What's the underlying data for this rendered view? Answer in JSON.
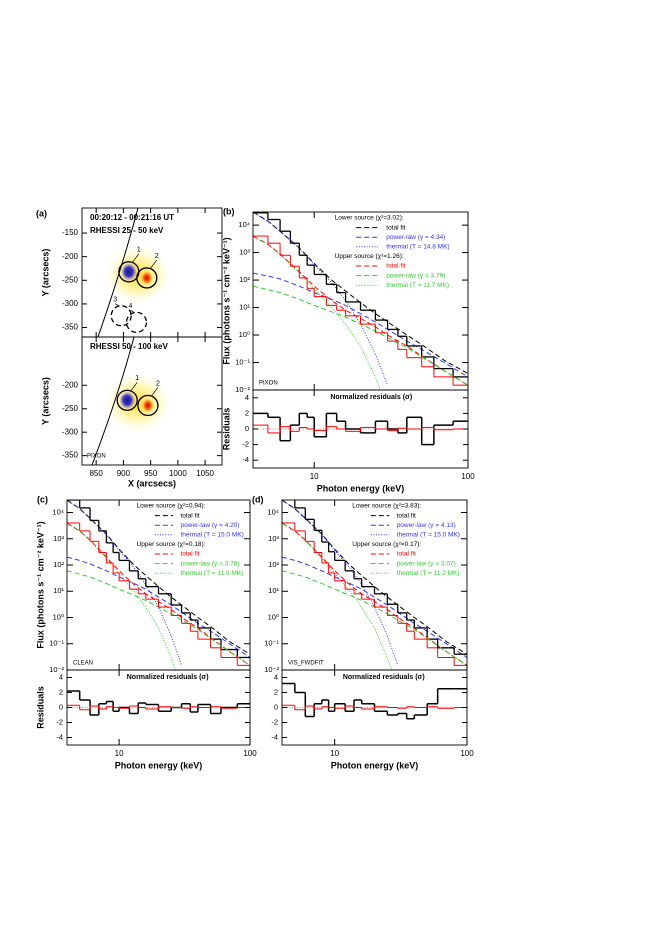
{
  "chart_data": [
    {
      "type": "image",
      "label": "(a)",
      "xlabel": "X (arcsecs)",
      "ylabel": "Y (arcsecs)",
      "xlim": [
        824,
        1081
      ],
      "xticks": [
        850,
        900,
        950,
        1000,
        1050
      ],
      "ylim": [
        -370,
        -97
      ],
      "panels": [
        {
          "lines": [
            "00:20:12 - 00:21:16 UT",
            "RHESSI 25 - 50 keV"
          ],
          "yticks": [
            -150,
            -200,
            -250,
            -300,
            -350
          ],
          "sources": [
            {
              "label": "1",
              "x": 910,
              "y": -232,
              "style": "solid"
            },
            {
              "label": "2",
              "x": 943,
              "y": -245,
              "style": "solid"
            },
            {
              "label": "3",
              "x": 896,
              "y": -325,
              "style": "dashed"
            },
            {
              "label": "4",
              "x": 924,
              "y": -339,
              "style": "dashed"
            }
          ]
        },
        {
          "lines": [
            "RHESSI 50 - 100 keV"
          ],
          "method": "PIXON",
          "yticks": [
            -200,
            -250,
            -300,
            -350
          ],
          "sources": [
            {
              "label": "1",
              "x": 907,
              "y": -232,
              "style": "solid"
            },
            {
              "label": "2",
              "x": 945,
              "y": -243,
              "style": "solid"
            }
          ]
        }
      ]
    },
    {
      "type": "spectrum",
      "label": "(b)",
      "method": "PIXON",
      "log_x": true,
      "log_y": true,
      "ylabel": "Flux (photons s⁻¹ cm⁻² keV⁻¹)",
      "rlabel": "Residuals",
      "xlabel": "Photon energy (keV)",
      "rtitle": "Normalized residuals (σ)",
      "xlim": [
        4,
        100
      ],
      "xticks": [
        10,
        100
      ],
      "ylim": [
        0.01,
        30000
      ],
      "yticks": [
        {
          "value": 10000,
          "label": "10⁴"
        },
        {
          "value": 1000,
          "label": "10³"
        },
        {
          "value": 100,
          "label": "10²"
        },
        {
          "value": 10,
          "label": "10¹"
        },
        {
          "value": 1,
          "label": "10⁰"
        },
        {
          "value": 0.1,
          "label": "10⁻¹"
        },
        {
          "value": 0.01,
          "label": "10⁻²"
        }
      ],
      "rylim": [
        -5,
        5
      ],
      "ryticks": [
        4,
        2,
        0,
        -2,
        -4
      ],
      "bins": [
        4,
        5,
        6,
        7,
        8,
        9,
        10,
        12,
        14,
        16,
        20,
        25,
        30,
        35,
        40,
        50,
        60,
        80,
        100
      ],
      "energy": [
        4,
        5,
        6,
        8,
        10,
        13,
        16,
        20,
        25,
        30,
        40,
        50,
        70,
        100
      ],
      "groups": [
        {
          "title": "Lower source (χ²=3.02):",
          "data_color": "#000000",
          "data": [
            28000,
            16000,
            6000,
            2200,
            800,
            350,
            160,
            70,
            35,
            16,
            8,
            3.5,
            1.6,
            0.9,
            0.4,
            0.16,
            0.06,
            0.03
          ],
          "residuals": [
            2,
            1.5,
            -1.5,
            0.5,
            2,
            1.5,
            -1,
            2,
            1,
            0,
            -0.5,
            1,
            0,
            -0.5,
            1.5,
            -2,
            0.5,
            1
          ],
          "series": [
            {
              "name": "total fit",
              "color": "#000000",
              "dash": "dashed",
              "values": [
                30000,
                14000,
                6000,
                1500,
                400,
                100,
                40,
                15,
                6,
                3,
                1,
                0.45,
                0.12,
                0.04
              ]
            },
            {
              "name": "power-law (γ = 4.34)",
              "color": "#3333ff",
              "dash": "dashed",
              "values": [
                180,
                140,
                110,
                60,
                35,
                20,
                12,
                6,
                3,
                1.6,
                0.6,
                0.3,
                0.1,
                0.03
              ]
            },
            {
              "name": "thermal (T = 14.8 MK)",
              "color": "#3333ff",
              "dash": "dotted",
              "values": [
                29800,
                13800,
                5900,
                1440,
                365,
                80,
                18,
                2.5,
                0.2,
                0.015,
                null,
                null,
                null,
                null
              ]
            }
          ]
        },
        {
          "title": "Upper source (χ²=1.26):",
          "data_color": "#ff0000",
          "data": [
            4000,
            2200,
            800,
            320,
            120,
            50,
            25,
            12,
            8,
            5,
            2.5,
            1.2,
            0.6,
            0.3,
            0.15,
            0.07,
            0.03,
            0.015
          ],
          "residuals": [
            0.5,
            -0.5,
            0.3,
            -0.3,
            0.2,
            0,
            -0.2,
            0.3,
            0,
            -0.3,
            0.2,
            0,
            -0.2,
            0.1,
            0,
            0.2,
            -0.1,
            0
          ],
          "series": [
            {
              "name": "total fit",
              "color": "#ff0000",
              "dash": "dashed",
              "values": [
                4000,
                2000,
                900,
                200,
                60,
                18,
                8,
                4,
                2,
                1,
                0.4,
                0.17,
                0.05,
                0.015
              ]
            },
            {
              "name": "power-law (γ = 3.79)",
              "color": "#33cc33",
              "dash": "dashed",
              "values": [
                60,
                45,
                35,
                20,
                12,
                7,
                4.5,
                2.5,
                1.4,
                0.8,
                0.35,
                0.16,
                0.05,
                0.015
              ]
            },
            {
              "name": "thermal (T = 11.7 MK)",
              "color": "#33cc33",
              "dash": "dotted",
              "values": [
                3900,
                1950,
                860,
                180,
                48,
                10,
                2.5,
                0.4,
                0.03,
                0.002,
                null,
                null,
                null,
                null
              ]
            }
          ]
        }
      ]
    },
    {
      "type": "spectrum",
      "label": "(c)",
      "method": "CLEAN",
      "log_x": true,
      "log_y": true,
      "ylabel": "Flux (photons s⁻¹ cm⁻² keV⁻¹)",
      "rlabel": "Residuals",
      "xlabel": "Photon energy (keV)",
      "rtitle": "Normalized residuals (σ)",
      "xlim": [
        4,
        100
      ],
      "xticks": [
        10,
        100
      ],
      "ylim": [
        0.01,
        30000
      ],
      "yticks": [
        {
          "value": 10000,
          "label": "10⁴"
        },
        {
          "value": 1000,
          "label": "10³"
        },
        {
          "value": 100,
          "label": "10²"
        },
        {
          "value": 10,
          "label": "10¹"
        },
        {
          "value": 1,
          "label": "10⁰"
        },
        {
          "value": 0.1,
          "label": "10⁻¹"
        },
        {
          "value": 0.01,
          "label": "10⁻²"
        }
      ],
      "rylim": [
        -5,
        5
      ],
      "ryticks": [
        4,
        2,
        0,
        -2,
        -4
      ],
      "bins": [
        4,
        5,
        6,
        7,
        8,
        9,
        10,
        12,
        14,
        16,
        20,
        25,
        30,
        35,
        40,
        50,
        60,
        80,
        100
      ],
      "energy": [
        4,
        5,
        6,
        8,
        10,
        13,
        16,
        20,
        25,
        30,
        40,
        50,
        70,
        100
      ],
      "groups": [
        {
          "title": "Lower source (χ²=0.94):",
          "data_color": "#000000",
          "data": [
            30000,
            15000,
            5000,
            2000,
            700,
            300,
            150,
            60,
            30,
            15,
            8,
            3,
            1.5,
            0.8,
            0.4,
            0.15,
            0.06,
            0.03
          ],
          "residuals": [
            2.2,
            1,
            -1,
            0.5,
            0.8,
            -0.5,
            0,
            -0.8,
            0.6,
            0.4,
            -0.5,
            0,
            0.5,
            -0.6,
            0.4,
            -0.8,
            0,
            0.5
          ],
          "series": [
            {
              "name": "total fit",
              "color": "#000000",
              "dash": "dashed",
              "values": [
                30000,
                14000,
                6000,
                1500,
                400,
                100,
                40,
                15,
                6,
                3,
                1,
                0.45,
                0.12,
                0.04
              ]
            },
            {
              "name": "power-law (γ = 4.20)",
              "color": "#3333ff",
              "dash": "dashed",
              "values": [
                200,
                150,
                110,
                60,
                35,
                20,
                12,
                6,
                3,
                1.6,
                0.6,
                0.3,
                0.1,
                0.03
              ]
            },
            {
              "name": "thermal (T = 15.0 MK)",
              "color": "#3333ff",
              "dash": "dotted",
              "values": [
                29800,
                13800,
                5900,
                1440,
                365,
                80,
                18,
                2.5,
                0.2,
                0.015,
                null,
                null,
                null,
                null
              ]
            }
          ]
        },
        {
          "title": "Upper source (χ²=0.18):",
          "data_color": "#ff0000",
          "data": [
            4000,
            2000,
            800,
            300,
            120,
            50,
            25,
            12,
            8,
            5,
            2.5,
            1.2,
            0.6,
            0.3,
            0.15,
            0.07,
            0.03,
            0.015
          ],
          "residuals": [
            0.3,
            -0.3,
            0.2,
            -0.2,
            0.1,
            0,
            -0.1,
            0.2,
            0,
            -0.2,
            0.1,
            0,
            -0.1,
            0.1,
            0,
            0.1,
            -0.1,
            0
          ],
          "series": [
            {
              "name": "total fit",
              "color": "#ff0000",
              "dash": "dashed",
              "values": [
                4000,
                2000,
                900,
                200,
                60,
                18,
                8,
                4,
                2,
                1,
                0.4,
                0.17,
                0.05,
                0.015
              ]
            },
            {
              "name": "power-law (γ = 3.78)",
              "color": "#33cc33",
              "dash": "dashed",
              "values": [
                60,
                45,
                35,
                20,
                12,
                7,
                4.5,
                2.5,
                1.4,
                0.8,
                0.35,
                0.16,
                0.05,
                0.015
              ]
            },
            {
              "name": "thermal (T = 11.0 MK)",
              "color": "#33cc33",
              "dash": "dotted",
              "values": [
                3900,
                1950,
                860,
                180,
                48,
                10,
                2.5,
                0.4,
                0.03,
                0.002,
                null,
                null,
                null,
                null
              ]
            }
          ]
        }
      ]
    },
    {
      "type": "spectrum",
      "label": "(d)",
      "method": "VIS_FWDFIT",
      "log_x": true,
      "log_y": true,
      "xlabel": "Photon energy (keV)",
      "rtitle": "Normalized residuals (σ)",
      "xlim": [
        4,
        100
      ],
      "xticks": [
        10,
        100
      ],
      "ylim": [
        0.01,
        30000
      ],
      "yticks": [
        {
          "value": 10000,
          "label": "10⁴"
        },
        {
          "value": 1000,
          "label": "10³"
        },
        {
          "value": 100,
          "label": "10²"
        },
        {
          "value": 10,
          "label": "10¹"
        },
        {
          "value": 1,
          "label": "10⁰"
        },
        {
          "value": 0.1,
          "label": "10⁻¹"
        },
        {
          "value": 0.01,
          "label": "10⁻²"
        }
      ],
      "rylim": [
        -5,
        5
      ],
      "ryticks": [
        4,
        2,
        0,
        -2,
        -4
      ],
      "bins": [
        4,
        5,
        6,
        7,
        8,
        9,
        10,
        12,
        14,
        16,
        20,
        25,
        30,
        35,
        40,
        50,
        60,
        80,
        100
      ],
      "energy": [
        4,
        5,
        6,
        8,
        10,
        13,
        16,
        20,
        25,
        30,
        40,
        50,
        70,
        100
      ],
      "groups": [
        {
          "title": "Lower source (χ²=3.83):",
          "data_color": "#000000",
          "data": [
            32000,
            15000,
            5500,
            2100,
            750,
            320,
            150,
            60,
            30,
            15,
            8,
            3.2,
            1.5,
            0.8,
            0.4,
            0.15,
            0.07,
            0.04
          ],
          "residuals": [
            3.2,
            2,
            -1.2,
            0.5,
            1,
            -0.5,
            0.5,
            -0.5,
            1,
            0.5,
            -0.5,
            -1,
            -0.8,
            -1.5,
            -1,
            0.5,
            2.5,
            2.5
          ],
          "series": [
            {
              "name": "total fit",
              "color": "#000000",
              "dash": "dashed",
              "values": [
                30000,
                14000,
                6000,
                1500,
                400,
                100,
                40,
                15,
                6,
                3,
                1,
                0.45,
                0.12,
                0.04
              ]
            },
            {
              "name": "power-law (γ = 4.13)",
              "color": "#3333ff",
              "dash": "dashed",
              "values": [
                200,
                150,
                110,
                60,
                35,
                20,
                12,
                6,
                3,
                1.6,
                0.6,
                0.3,
                0.1,
                0.03
              ]
            },
            {
              "name": "thermal (T = 15.0 MK)",
              "color": "#3333ff",
              "dash": "dotted",
              "values": [
                29800,
                13800,
                5900,
                1440,
                365,
                80,
                18,
                2.5,
                0.2,
                0.015,
                null,
                null,
                null,
                null
              ]
            }
          ]
        },
        {
          "title": "Upper source (χ²=0.17):",
          "data_color": "#ff0000",
          "data": [
            4000,
            2000,
            800,
            300,
            120,
            50,
            25,
            12,
            8,
            5,
            2.5,
            1.2,
            0.6,
            0.3,
            0.15,
            0.07,
            0.03,
            0.015
          ],
          "residuals": [
            0.3,
            -0.3,
            0.2,
            -0.2,
            0.1,
            0,
            -0.1,
            0.2,
            0,
            -0.2,
            0.1,
            0,
            -0.1,
            0.1,
            0,
            0.1,
            -0.1,
            0
          ],
          "series": [
            {
              "name": "total fit",
              "color": "#ff0000",
              "dash": "dashed",
              "values": [
                4000,
                2000,
                900,
                200,
                60,
                18,
                8,
                4,
                2,
                1,
                0.4,
                0.17,
                0.05,
                0.015
              ]
            },
            {
              "name": "power-law (γ = 3.07)",
              "color": "#33cc33",
              "dash": "dashed",
              "values": [
                60,
                45,
                35,
                20,
                12,
                7,
                4.5,
                2.5,
                1.4,
                0.8,
                0.35,
                0.16,
                0.05,
                0.015
              ]
            },
            {
              "name": "thermal (T = 11.2 MK)",
              "color": "#33cc33",
              "dash": "dotted",
              "values": [
                3900,
                1950,
                860,
                180,
                48,
                10,
                2.5,
                0.4,
                0.03,
                0.002,
                null,
                null,
                null,
                null
              ]
            }
          ]
        }
      ]
    }
  ]
}
